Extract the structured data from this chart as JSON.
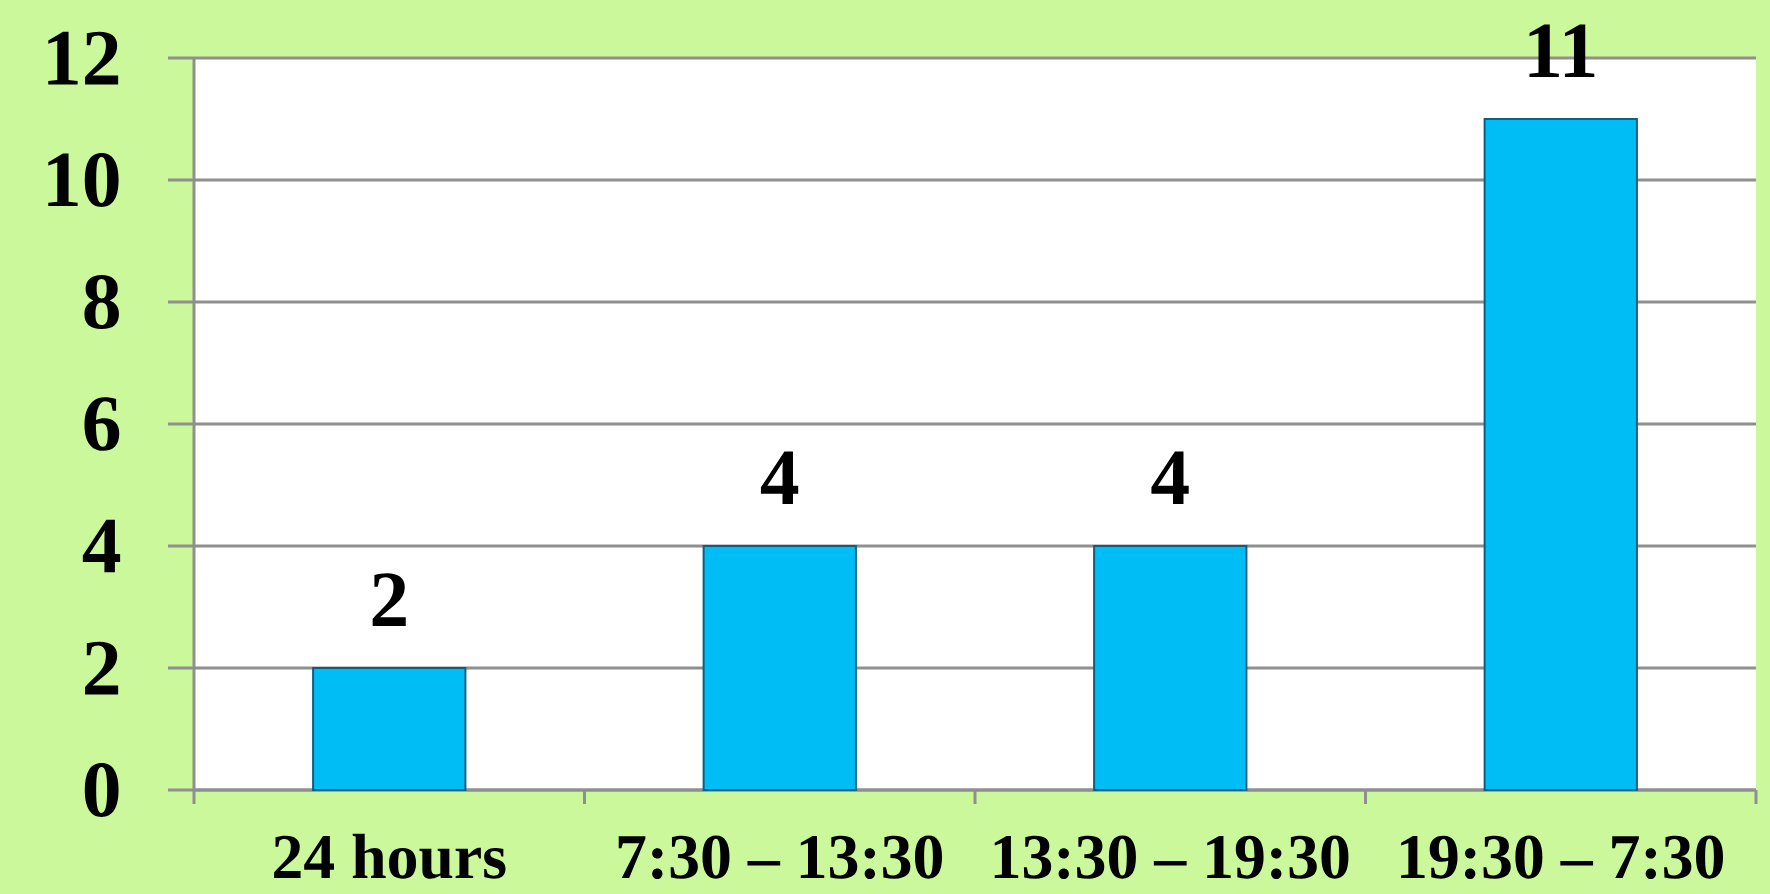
{
  "chart_data": {
    "type": "bar",
    "categories": [
      "24 hours",
      "7:30 – 13:30",
      "13:30 – 19:30",
      "19:30 – 7:30"
    ],
    "values": [
      2,
      4,
      4,
      11
    ],
    "color": "#00bef5",
    "ylim": [
      0,
      12
    ],
    "yticks": [
      0,
      2,
      4,
      6,
      8,
      10,
      12
    ],
    "grid": "y",
    "data_labels": true
  }
}
